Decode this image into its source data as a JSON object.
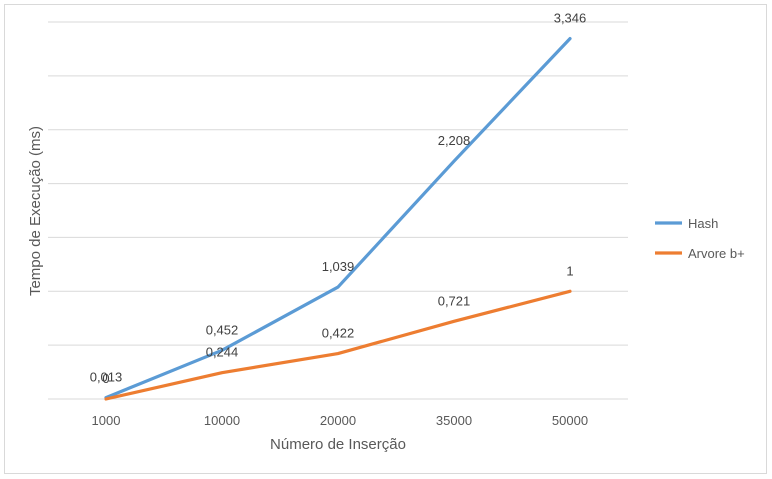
{
  "chart_data": {
    "type": "line",
    "title": "",
    "xlabel": "Número de Inserção",
    "ylabel": "Tempo de Execução (ms)",
    "categories": [
      "1000",
      "10000",
      "20000",
      "35000",
      "50000"
    ],
    "ylim": [
      0,
      3.5
    ],
    "grid": true,
    "legend_position": "right",
    "series": [
      {
        "name": "Hash",
        "color": "#5b9bd5",
        "values": [
          0.013,
          0.452,
          1.039,
          2.208,
          3.346
        ],
        "labels": [
          "0,013",
          "0,452",
          "1,039",
          "2,208",
          "3,346"
        ]
      },
      {
        "name": "Arvore b+",
        "color": "#ed7d31",
        "values": [
          0,
          0.244,
          0.422,
          0.721,
          1
        ],
        "labels": [
          "0",
          "0,244",
          "0,422",
          "0,721",
          "1"
        ]
      }
    ]
  }
}
